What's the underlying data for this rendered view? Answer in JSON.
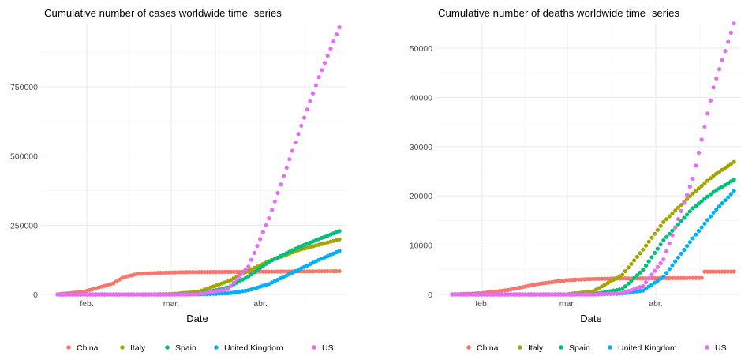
{
  "chart_data": [
    {
      "type": "scatter",
      "title": "Cumulative number of cases worldwide time−series",
      "xlabel": "Date",
      "ylabel": "",
      "x_ticks": [
        "feb.",
        "mar.",
        "abr."
      ],
      "y_ticks": [
        "0",
        "250000",
        "500000",
        "750000"
      ],
      "ylim": [
        0,
        960000
      ],
      "x_range": [
        "2020-01-22",
        "2020-04-27"
      ],
      "grid": true,
      "legend_position": "bottom",
      "series": [
        {
          "name": "China",
          "color": "#F8766D",
          "keypoints": [
            [
              "2020-01-22",
              500
            ],
            [
              "2020-01-31",
              10000
            ],
            [
              "2020-02-10",
              40000
            ],
            [
              "2020-02-13",
              60000
            ],
            [
              "2020-02-18",
              74000
            ],
            [
              "2020-02-25",
              78000
            ],
            [
              "2020-03-05",
              80500
            ],
            [
              "2020-04-27",
              84000
            ]
          ]
        },
        {
          "name": "Italy",
          "color": "#A3A500",
          "keypoints": [
            [
              "2020-01-22",
              0
            ],
            [
              "2020-02-22",
              0
            ],
            [
              "2020-03-01",
              1700
            ],
            [
              "2020-03-10",
              10000
            ],
            [
              "2020-03-20",
              47000
            ],
            [
              "2020-03-27",
              86000
            ],
            [
              "2020-04-03",
              120000
            ],
            [
              "2020-04-13",
              160000
            ],
            [
              "2020-04-27",
              199000
            ]
          ]
        },
        {
          "name": "Spain",
          "color": "#00BF7D",
          "keypoints": [
            [
              "2020-01-22",
              0
            ],
            [
              "2020-03-01",
              0
            ],
            [
              "2020-03-10",
              1700
            ],
            [
              "2020-03-20",
              25000
            ],
            [
              "2020-03-27",
              65000
            ],
            [
              "2020-04-03",
              118000
            ],
            [
              "2020-04-13",
              170000
            ],
            [
              "2020-04-20",
              200000
            ],
            [
              "2020-04-27",
              229000
            ]
          ]
        },
        {
          "name": "United Kingdom",
          "color": "#00B0F6",
          "keypoints": [
            [
              "2020-01-22",
              0
            ],
            [
              "2020-03-01",
              0
            ],
            [
              "2020-03-10",
              400
            ],
            [
              "2020-03-20",
              4000
            ],
            [
              "2020-03-27",
              15000
            ],
            [
              "2020-04-03",
              38000
            ],
            [
              "2020-04-13",
              89000
            ],
            [
              "2020-04-20",
              125000
            ],
            [
              "2020-04-27",
              157000
            ]
          ]
        },
        {
          "name": "US",
          "color": "#E76BF3",
          "keypoints": [
            [
              "2020-01-22",
              0
            ],
            [
              "2020-03-01",
              0
            ],
            [
              "2020-03-10",
              1000
            ],
            [
              "2020-03-20",
              19000
            ],
            [
              "2020-03-27",
              100000
            ],
            [
              "2020-04-03",
              275000
            ],
            [
              "2020-04-13",
              580000
            ],
            [
              "2020-04-20",
              785000
            ],
            [
              "2020-04-27",
              965000
            ]
          ]
        }
      ]
    },
    {
      "type": "scatter",
      "title": "Cumulative number of deaths worldwide time−series",
      "xlabel": "Date",
      "ylabel": "",
      "x_ticks": [
        "feb.",
        "mar.",
        "abr."
      ],
      "y_ticks": [
        "0",
        "10000",
        "20000",
        "30000",
        "40000",
        "50000"
      ],
      "ylim": [
        0,
        55000
      ],
      "x_range": [
        "2020-01-22",
        "2020-04-27"
      ],
      "grid": true,
      "legend_position": "bottom",
      "series": [
        {
          "name": "China",
          "color": "#F8766D",
          "keypoints": [
            [
              "2020-01-22",
              20
            ],
            [
              "2020-02-01",
              260
            ],
            [
              "2020-02-10",
              900
            ],
            [
              "2020-02-20",
              2100
            ],
            [
              "2020-03-01",
              2900
            ],
            [
              "2020-03-10",
              3140
            ],
            [
              "2020-03-20",
              3250
            ],
            [
              "2020-04-16",
              3340
            ],
            [
              "2020-04-17",
              4630
            ],
            [
              "2020-04-27",
              4640
            ]
          ]
        },
        {
          "name": "Italy",
          "color": "#A3A500",
          "keypoints": [
            [
              "2020-01-22",
              0
            ],
            [
              "2020-02-22",
              0
            ],
            [
              "2020-03-01",
              34
            ],
            [
              "2020-03-10",
              630
            ],
            [
              "2020-03-20",
              4000
            ],
            [
              "2020-03-27",
              9100
            ],
            [
              "2020-04-03",
              14700
            ],
            [
              "2020-04-13",
              20500
            ],
            [
              "2020-04-20",
              24100
            ],
            [
              "2020-04-27",
              26900
            ]
          ]
        },
        {
          "name": "Spain",
          "color": "#00BF7D",
          "keypoints": [
            [
              "2020-01-22",
              0
            ],
            [
              "2020-03-01",
              0
            ],
            [
              "2020-03-10",
              35
            ],
            [
              "2020-03-20",
              1100
            ],
            [
              "2020-03-27",
              5000
            ],
            [
              "2020-04-03",
              11000
            ],
            [
              "2020-04-13",
              17500
            ],
            [
              "2020-04-20",
              20800
            ],
            [
              "2020-04-27",
              23300
            ]
          ]
        },
        {
          "name": "United Kingdom",
          "color": "#00B0F6",
          "keypoints": [
            [
              "2020-01-22",
              0
            ],
            [
              "2020-03-01",
              0
            ],
            [
              "2020-03-10",
              6
            ],
            [
              "2020-03-20",
              180
            ],
            [
              "2020-03-27",
              800
            ],
            [
              "2020-04-03",
              3600
            ],
            [
              "2020-04-13",
              11400
            ],
            [
              "2020-04-20",
              16600
            ],
            [
              "2020-04-27",
              21000
            ]
          ]
        },
        {
          "name": "US",
          "color": "#E76BF3",
          "keypoints": [
            [
              "2020-01-22",
              0
            ],
            [
              "2020-03-01",
              1
            ],
            [
              "2020-03-10",
              28
            ],
            [
              "2020-03-20",
              250
            ],
            [
              "2020-03-27",
              1700
            ],
            [
              "2020-04-03",
              7100
            ],
            [
              "2020-04-13",
              23500
            ],
            [
              "2020-04-20",
              42000
            ],
            [
              "2020-04-27",
              55000
            ]
          ]
        }
      ]
    }
  ]
}
